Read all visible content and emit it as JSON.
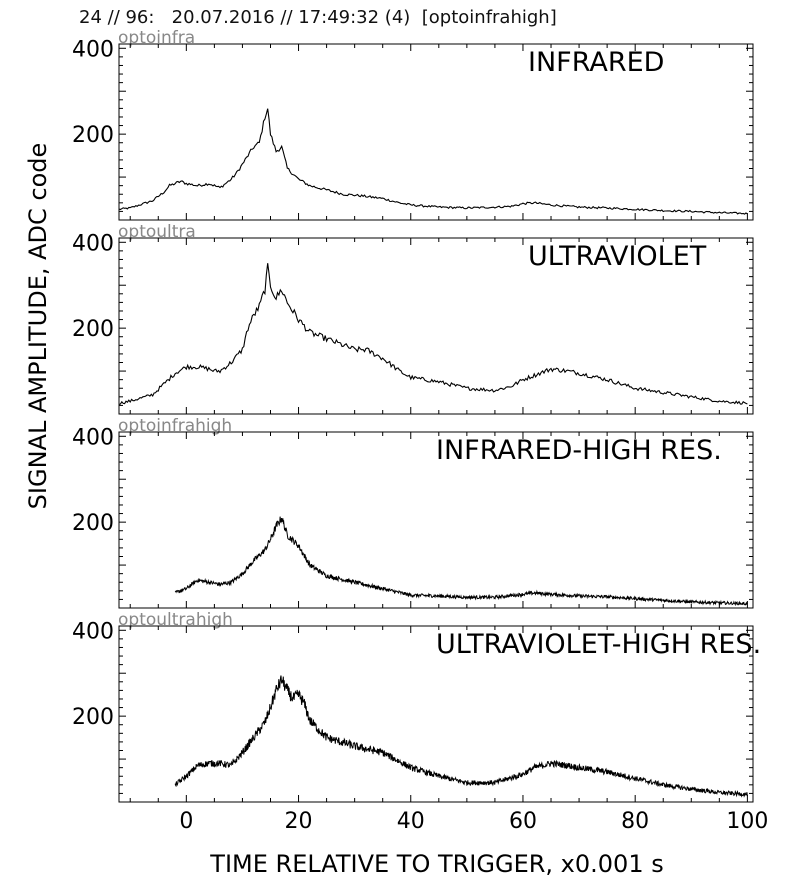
{
  "header": {
    "text": "24 // 96:   20.07.2016 // 17:49:32 (4)  [optoinfrahigh]"
  },
  "chart_data": {
    "type": "line",
    "xlabel": "TIME RELATIVE TO TRIGGER,   x0.001 s",
    "ylabel": "SIGNAL AMPLITUDE,  ADC code",
    "xlim": [
      -12,
      101
    ],
    "ylim": [
      0,
      410
    ],
    "x_ticks": [
      0,
      20,
      40,
      60,
      80,
      100
    ],
    "y_ticks": [
      200,
      400
    ],
    "grid": false,
    "line_color": "#000000",
    "panels": [
      {
        "tag": "optoinfra",
        "title": "INFRARED",
        "noise": 9,
        "series": {
          "x": [
            -12,
            -10,
            -6,
            -4,
            -3,
            -1,
            0,
            2,
            4,
            6,
            8,
            9,
            10,
            11,
            12,
            13,
            13.5,
            14,
            14.5,
            15,
            16,
            17,
            18,
            20,
            22,
            25,
            28,
            30,
            32,
            35,
            38,
            40,
            45,
            50,
            55,
            58,
            60,
            62,
            65,
            70,
            75,
            80,
            85,
            90,
            95,
            100
          ],
          "y": [
            25,
            28,
            45,
            65,
            80,
            90,
            85,
            80,
            85,
            75,
            95,
            110,
            130,
            150,
            170,
            180,
            210,
            240,
            260,
            200,
            160,
            170,
            120,
            95,
            80,
            70,
            60,
            58,
            55,
            50,
            40,
            35,
            30,
            28,
            30,
            32,
            38,
            40,
            35,
            30,
            28,
            25,
            22,
            20,
            17,
            15
          ]
        }
      },
      {
        "tag": "optoultra",
        "title": "ULTRAVIOLET",
        "noise": 13,
        "series": {
          "x": [
            -12,
            -10,
            -6,
            -4,
            -2,
            0,
            2,
            4,
            5,
            6,
            8,
            10,
            11,
            12,
            13,
            14,
            14.5,
            15,
            16,
            17,
            18,
            20,
            22,
            25,
            28,
            30,
            32,
            35,
            38,
            40,
            45,
            50,
            55,
            58,
            60,
            62,
            65,
            68,
            70,
            75,
            80,
            85,
            90,
            95,
            100
          ],
          "y": [
            25,
            30,
            45,
            70,
            95,
            110,
            110,
            105,
            100,
            100,
            120,
            150,
            200,
            230,
            250,
            290,
            340,
            300,
            270,
            290,
            260,
            220,
            190,
            175,
            160,
            150,
            150,
            130,
            100,
            85,
            75,
            60,
            55,
            65,
            80,
            90,
            105,
            100,
            95,
            80,
            60,
            50,
            40,
            30,
            25
          ]
        }
      },
      {
        "tag": "optoinfrahigh",
        "title": "INFRARED-HIGH RES.",
        "noise": 15,
        "series": {
          "x": [
            -2,
            0,
            2,
            4,
            6,
            8,
            10,
            12,
            14,
            15,
            16,
            17,
            18,
            20,
            22,
            25,
            30,
            35,
            40,
            45,
            50,
            55,
            60,
            62,
            65,
            70,
            75,
            80,
            85,
            90,
            95,
            100
          ],
          "y": [
            35,
            45,
            65,
            60,
            55,
            60,
            80,
            110,
            135,
            160,
            190,
            210,
            170,
            145,
            100,
            75,
            60,
            45,
            30,
            28,
            25,
            25,
            32,
            35,
            32,
            28,
            26,
            22,
            18,
            14,
            12,
            10
          ]
        }
      },
      {
        "tag": "optoultrahigh",
        "title": "ULTRAVIOLET-HIGH RES.",
        "noise": 20,
        "series": {
          "x": [
            -2,
            0,
            2,
            4,
            6,
            8,
            10,
            12,
            14,
            15,
            16,
            17,
            18,
            19,
            20,
            21,
            22,
            25,
            30,
            35,
            40,
            45,
            50,
            55,
            60,
            62,
            65,
            68,
            70,
            75,
            80,
            85,
            90,
            95,
            100
          ],
          "y": [
            40,
            60,
            85,
            90,
            90,
            85,
            115,
            150,
            185,
            220,
            260,
            285,
            260,
            240,
            250,
            230,
            190,
            150,
            130,
            115,
            80,
            60,
            45,
            45,
            65,
            80,
            90,
            85,
            80,
            70,
            55,
            40,
            30,
            22,
            18
          ]
        }
      }
    ]
  }
}
